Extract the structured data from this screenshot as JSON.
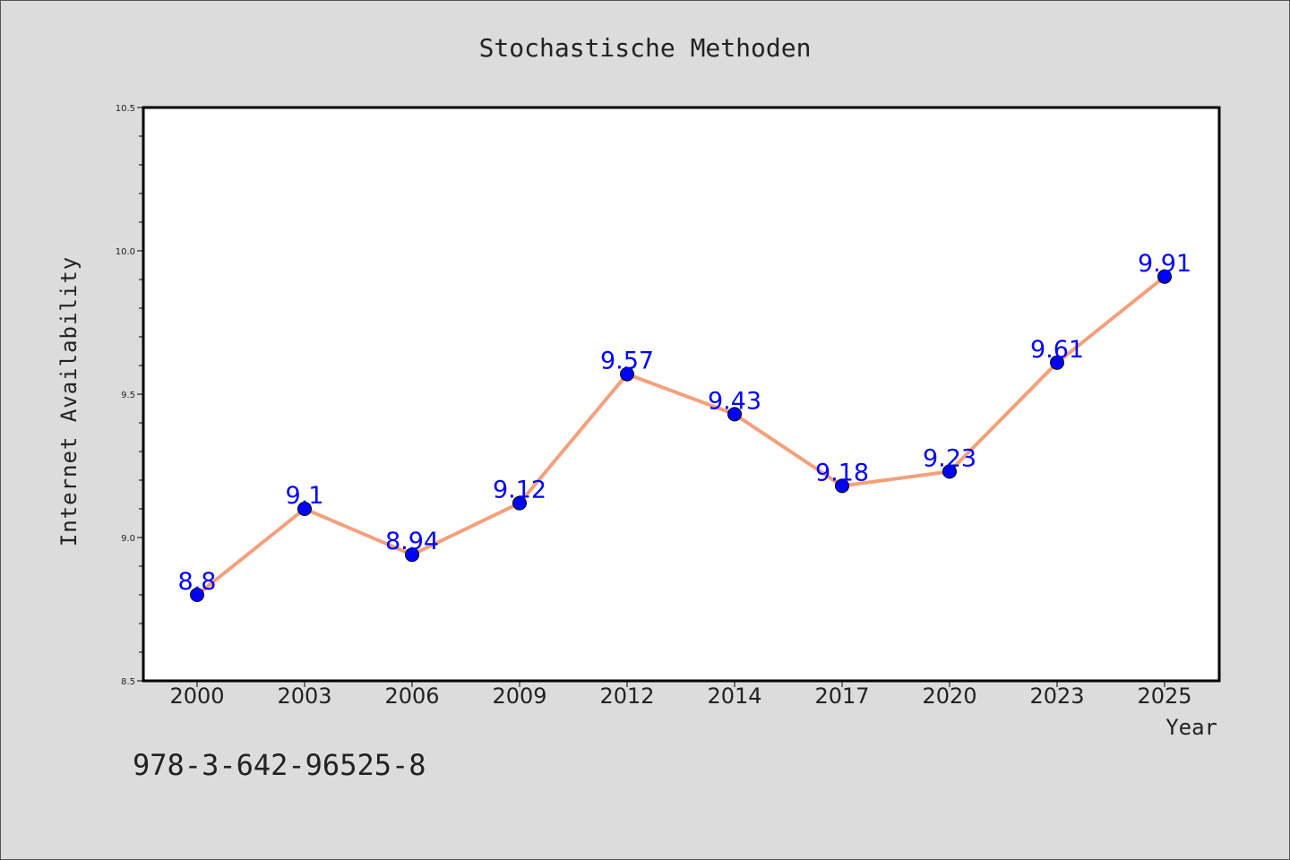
{
  "chart_data": {
    "type": "line",
    "title": "Stochastische Methoden",
    "xlabel": "Year",
    "ylabel": "Internet Availability",
    "x": [
      "2000",
      "2003",
      "2006",
      "2009",
      "2012",
      "2014",
      "2017",
      "2020",
      "2023",
      "2025"
    ],
    "series": [
      {
        "values": [
          8.8,
          9.1,
          8.94,
          9.12,
          9.57,
          9.43,
          9.18,
          9.23,
          9.61,
          9.91
        ],
        "labels": [
          "8.8",
          "9.1",
          "8.94",
          "9.12",
          "9.57",
          "9.43",
          "9.18",
          "9.23",
          "9.61",
          "9.91"
        ],
        "line_color": "#f4a07c",
        "marker_color": "#0000ff"
      }
    ],
    "ylim": [
      8.5,
      10.5
    ],
    "yticks": [
      "8.5",
      "9.0",
      "9.5",
      "10.0",
      "10.5"
    ],
    "grid": false,
    "data_label_color": "#0000ff"
  },
  "annotation": "978-3-642-96525-8",
  "colors": {
    "background": "#dcdcdc",
    "plot_background": "#ffffff",
    "axis": "#000000"
  }
}
